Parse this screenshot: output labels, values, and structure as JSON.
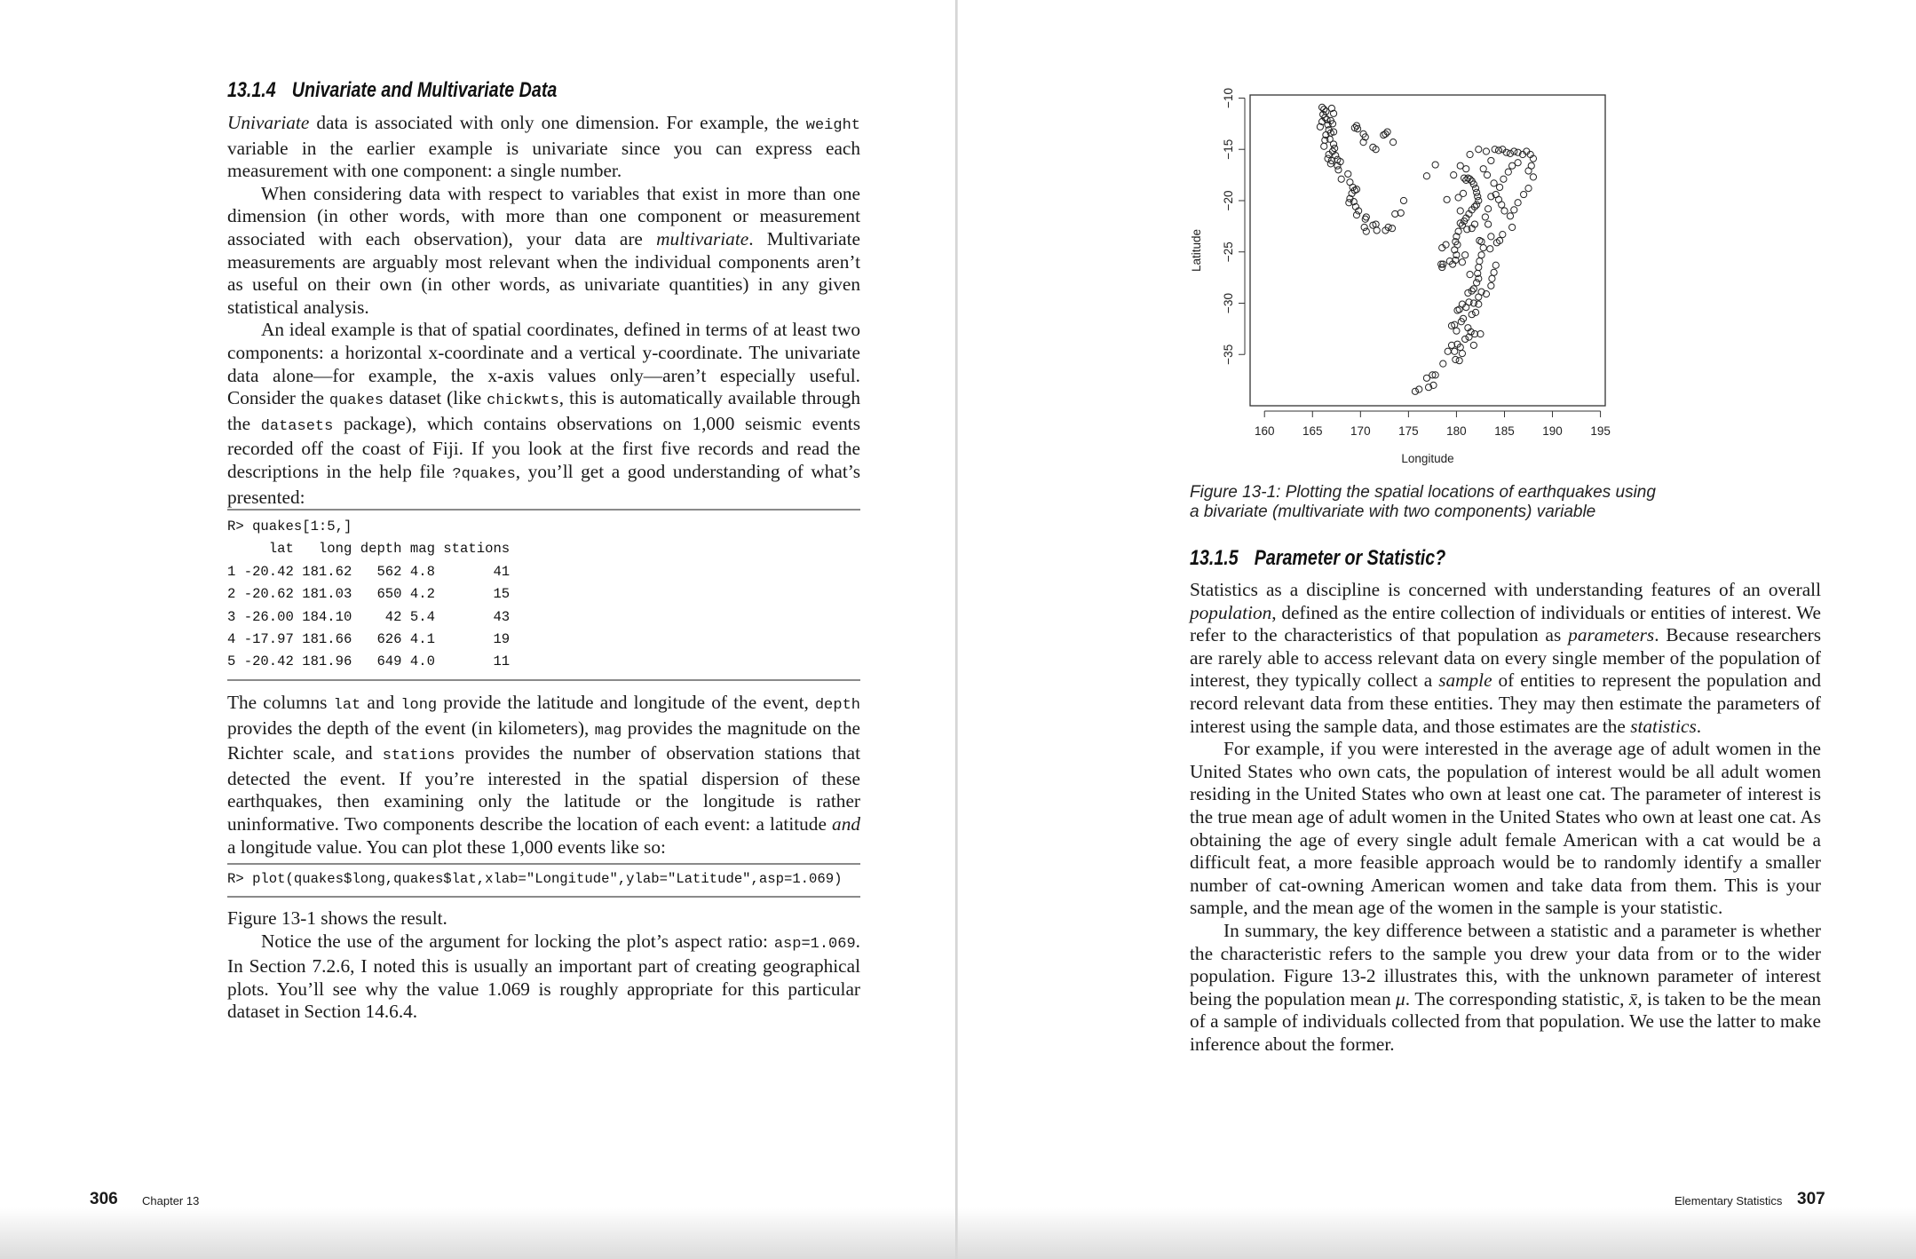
{
  "left_page": {
    "heading": {
      "number": "13.1.4",
      "title": "Univariate and Multivariate Data"
    },
    "paragraphs_top": [
      {
        "indent": false,
        "segments": [
          [
            "i",
            "Univariate"
          ],
          [
            "t",
            " data is associated with only one dimension. For example, the "
          ],
          [
            "c",
            "weight"
          ],
          [
            "t",
            " variable in the earlier example is univariate since you can express each measurement with one component: a single number."
          ]
        ]
      },
      {
        "indent": true,
        "segments": [
          [
            "t",
            "When considering data with respect to variables that exist in more than one dimension (in other words, with more than one component or measurement associated with each observation), your data are "
          ],
          [
            "i",
            "multivariate"
          ],
          [
            "t",
            ". Multivariate measurements are arguably most relevant when the individual components aren’t as useful on their own (in other words, as univariate quantities) in any given statistical analysis."
          ]
        ]
      },
      {
        "indent": true,
        "segments": [
          [
            "t",
            "An ideal example is that of spatial coordinates, defined in terms of at least two components: a horizontal x-coordinate and a vertical y-coordinate. The univariate data alone—for example, the x-axis values only—aren’t especially useful. Consider the "
          ],
          [
            "c",
            "quakes"
          ],
          [
            "t",
            " dataset (like "
          ],
          [
            "c",
            "chickwts"
          ],
          [
            "t",
            ", this is automatically available through the "
          ],
          [
            "c",
            "datasets"
          ],
          [
            "t",
            " package), which contains observations on 1,000 seismic events recorded off the coast of Fiji. If you look at the first five records and read the descriptions in the help file "
          ],
          [
            "c",
            "?quakes"
          ],
          [
            "t",
            ", you’ll get a good understanding of what’s presented:"
          ]
        ]
      }
    ],
    "code_block_1": [
      "R> quakes[1:5,]",
      "     lat   long depth mag stations",
      "1 -20.42 181.62   562 4.8       41",
      "2 -20.62 181.03   650 4.2       15",
      "3 -26.00 184.10    42 5.4       43",
      "4 -17.97 181.66   626 4.1       19",
      "5 -20.42 181.96   649 4.0       11"
    ],
    "paragraphs_mid": [
      {
        "indent": false,
        "segments": [
          [
            "t",
            "The columns "
          ],
          [
            "c",
            "lat"
          ],
          [
            "t",
            " and "
          ],
          [
            "c",
            "long"
          ],
          [
            "t",
            " provide the latitude and longitude of the event, "
          ],
          [
            "c",
            "depth"
          ],
          [
            "t",
            " provides the depth of the event (in kilometers), "
          ],
          [
            "c",
            "mag"
          ],
          [
            "t",
            " provides the magnitude on the Richter scale, and "
          ],
          [
            "c",
            "stations"
          ],
          [
            "t",
            " provides the number of observation stations that detected the event. If you’re interested in the spatial dispersion of these earthquakes, then examining only the latitude or the longitude is rather uninformative. Two components describe the location of each event: a latitude "
          ],
          [
            "i",
            "and"
          ],
          [
            "t",
            " a longitude value. You can plot these 1,000 events like so:"
          ]
        ]
      }
    ],
    "code_block_2": [
      "R> plot(quakes$long,quakes$lat,xlab=\"Longitude\",ylab=\"Latitude\",asp=1.069)"
    ],
    "paragraphs_bottom": [
      {
        "indent": false,
        "segments": [
          [
            "t",
            "Figure 13-1 shows the result."
          ]
        ]
      },
      {
        "indent": true,
        "segments": [
          [
            "t",
            "Notice the use of the argument for locking the plot’s aspect ratio: "
          ],
          [
            "c",
            "asp=1.069"
          ],
          [
            "t",
            ". In Section 7.2.6, I noted this is usually an important part of creating geographical plots. You’ll see why the value 1.069 is roughly appropriate for this particular dataset in Section 14.6.4."
          ]
        ]
      }
    ],
    "footer": {
      "page_number": "306",
      "running_head": "Chapter 13"
    }
  },
  "right_page": {
    "figure_caption": [
      "Figure 13-1: Plotting the spatial locations of earthquakes using",
      "a bivariate (multivariate with two components) variable"
    ],
    "heading": {
      "number": "13.1.5",
      "title": "Parameter or Statistic?"
    },
    "paragraphs": [
      {
        "indent": false,
        "segments": [
          [
            "t",
            "Statistics as a discipline is concerned with understanding features of an overall "
          ],
          [
            "i",
            "population"
          ],
          [
            "t",
            ", defined as the entire collection of individuals or entities of interest. We refer to the characteristics of that population as "
          ],
          [
            "i",
            "parameters"
          ],
          [
            "t",
            ". Because researchers are rarely able to access relevant data on every single member of the population of interest, they typically collect a "
          ],
          [
            "i",
            "sample"
          ],
          [
            "t",
            " of entities to represent the population and record relevant data from these entities. They may then estimate the parameters of interest using the sample data, and those estimates are the "
          ],
          [
            "i",
            "statistics"
          ],
          [
            "t",
            "."
          ]
        ]
      },
      {
        "indent": true,
        "segments": [
          [
            "t",
            "For example, if you were interested in the average age of adult women in the United States who own cats, the population of interest would be all adult women residing in the United States who own at least one cat. The parameter of interest is the true mean age of adult women in the United States who own at least one cat. As obtaining the age of every single adult female American with a cat would be a difficult feat, a more feasible approach would be to randomly identify a smaller number of cat-owning American women and take data from them. This is your sample, and the mean age of the women in the sample is your statistic."
          ]
        ]
      },
      {
        "indent": true,
        "segments": [
          [
            "t",
            "In summary, the key difference between a statistic and a parameter is whether the characteristic refers to the sample you drew your data from or to the wider population. Figure 13-2 illustrates this, with the unknown parameter of interest being the population mean "
          ],
          [
            "i",
            "μ"
          ],
          [
            "t",
            ". The corresponding statistic, "
          ],
          [
            "i",
            "x̄"
          ],
          [
            "t",
            ", is taken to be the mean of a sample of individuals collected from that population. We use the latter to make inference about the former."
          ]
        ]
      }
    ],
    "footer": {
      "running_head": "Elementary Statistics",
      "page_number": "307"
    }
  },
  "chart_data": {
    "type": "scatter",
    "xlabel": "Longitude",
    "ylabel": "Latitude",
    "xlim": [
      158.5,
      195.5
    ],
    "ylim": [
      -40,
      -9.7
    ],
    "xticks": [
      160,
      165,
      170,
      175,
      180,
      185,
      190,
      195
    ],
    "yticks": [
      -10,
      -15,
      -20,
      -25,
      -30,
      -35
    ],
    "marker": "open-circle",
    "grid": false,
    "points": [
      [
        166.0,
        -10.9
      ],
      [
        166.2,
        -11.1
      ],
      [
        166.4,
        -11.3
      ],
      [
        166.1,
        -11.6
      ],
      [
        166.3,
        -11.9
      ],
      [
        166.5,
        -12.1
      ],
      [
        166.0,
        -12.3
      ],
      [
        165.8,
        -12.8
      ],
      [
        166.6,
        -12.6
      ],
      [
        166.9,
        -12.2
      ],
      [
        167.1,
        -12.5
      ],
      [
        167.0,
        -11.0
      ],
      [
        167.2,
        -11.5
      ],
      [
        166.7,
        -13.1
      ],
      [
        166.9,
        -13.4
      ],
      [
        167.2,
        -13.3
      ],
      [
        166.4,
        -13.6
      ],
      [
        166.3,
        -14.1
      ],
      [
        166.2,
        -14.7
      ],
      [
        166.8,
        -14.0
      ],
      [
        167.2,
        -14.5
      ],
      [
        167.3,
        -14.9
      ],
      [
        167.1,
        -15.2
      ],
      [
        166.7,
        -15.5
      ],
      [
        167.4,
        -15.6
      ],
      [
        166.6,
        -15.9
      ],
      [
        167.0,
        -16.1
      ],
      [
        166.9,
        -16.4
      ],
      [
        167.6,
        -16.0
      ],
      [
        167.9,
        -16.2
      ],
      [
        167.6,
        -16.6
      ],
      [
        167.7,
        -17.0
      ],
      [
        168.0,
        -17.9
      ],
      [
        168.7,
        -17.4
      ],
      [
        168.9,
        -18.2
      ],
      [
        169.2,
        -18.7
      ],
      [
        169.4,
        -19.0
      ],
      [
        169.6,
        -18.9
      ],
      [
        169.1,
        -19.3
      ],
      [
        168.9,
        -19.8
      ],
      [
        168.8,
        -20.2
      ],
      [
        169.3,
        -20.1
      ],
      [
        169.5,
        -20.6
      ],
      [
        169.8,
        -21.0
      ],
      [
        169.6,
        -21.4
      ],
      [
        170.6,
        -21.6
      ],
      [
        170.5,
        -21.8
      ],
      [
        170.4,
        -22.6
      ],
      [
        170.6,
        -23.0
      ],
      [
        171.3,
        -22.4
      ],
      [
        171.6,
        -22.3
      ],
      [
        171.7,
        -22.9
      ],
      [
        172.6,
        -22.9
      ],
      [
        172.9,
        -22.6
      ],
      [
        173.3,
        -22.7
      ],
      [
        169.6,
        -12.7
      ],
      [
        169.4,
        -12.9
      ],
      [
        169.7,
        -13.0
      ],
      [
        170.3,
        -13.5
      ],
      [
        170.5,
        -13.8
      ],
      [
        170.3,
        -14.3
      ],
      [
        171.3,
        -14.8
      ],
      [
        171.6,
        -15.0
      ],
      [
        172.4,
        -13.6
      ],
      [
        172.6,
        -13.5
      ],
      [
        172.8,
        -13.3
      ],
      [
        173.4,
        -14.3
      ],
      [
        174.5,
        -20.0
      ],
      [
        174.2,
        -21.2
      ],
      [
        173.6,
        -21.3
      ],
      [
        177.8,
        -16.5
      ],
      [
        176.9,
        -17.6
      ],
      [
        179.0,
        -19.9
      ],
      [
        179.7,
        -17.5
      ],
      [
        180.4,
        -16.6
      ],
      [
        181.0,
        -16.9
      ],
      [
        181.4,
        -15.5
      ],
      [
        182.3,
        -15.0
      ],
      [
        183.1,
        -15.2
      ],
      [
        183.6,
        -16.1
      ],
      [
        184.0,
        -15.0
      ],
      [
        184.4,
        -15.1
      ],
      [
        184.8,
        -15.0
      ],
      [
        185.2,
        -15.3
      ],
      [
        185.6,
        -15.4
      ],
      [
        186.0,
        -15.2
      ],
      [
        186.4,
        -15.3
      ],
      [
        186.9,
        -15.5
      ],
      [
        187.3,
        -15.2
      ],
      [
        187.7,
        -15.5
      ],
      [
        188.0,
        -15.9
      ],
      [
        187.8,
        -16.6
      ],
      [
        187.5,
        -17.1
      ],
      [
        188.0,
        -17.7
      ],
      [
        187.5,
        -18.8
      ],
      [
        186.4,
        -16.3
      ],
      [
        185.8,
        -16.6
      ],
      [
        185.4,
        -17.2
      ],
      [
        184.9,
        -17.9
      ],
      [
        184.5,
        -18.7
      ],
      [
        184.1,
        -19.4
      ],
      [
        184.4,
        -19.9
      ],
      [
        184.7,
        -20.4
      ],
      [
        185.0,
        -21.0
      ],
      [
        185.6,
        -21.5
      ],
      [
        186.0,
        -20.9
      ],
      [
        186.4,
        -20.2
      ],
      [
        187.0,
        -19.4
      ],
      [
        185.8,
        -22.6
      ],
      [
        184.8,
        -23.3
      ],
      [
        184.5,
        -23.9
      ],
      [
        184.2,
        -24.1
      ],
      [
        183.6,
        -23.5
      ],
      [
        183.3,
        -22.3
      ],
      [
        183.0,
        -21.6
      ],
      [
        183.3,
        -20.8
      ],
      [
        183.6,
        -19.6
      ],
      [
        183.9,
        -18.3
      ],
      [
        183.2,
        -17.5
      ],
      [
        182.8,
        -16.9
      ],
      [
        180.8,
        -17.8
      ],
      [
        181.0,
        -18.0
      ],
      [
        181.2,
        -17.8
      ],
      [
        181.4,
        -17.9
      ],
      [
        181.6,
        -18.1
      ],
      [
        181.8,
        -18.4
      ],
      [
        182.0,
        -18.8
      ],
      [
        182.1,
        -19.2
      ],
      [
        182.2,
        -19.6
      ],
      [
        182.3,
        -20.0
      ],
      [
        182.1,
        -20.4
      ],
      [
        181.9,
        -20.6
      ],
      [
        181.6,
        -20.9
      ],
      [
        181.3,
        -21.3
      ],
      [
        181.0,
        -21.7
      ],
      [
        180.8,
        -22.0
      ],
      [
        180.6,
        -22.4
      ],
      [
        180.4,
        -22.2
      ],
      [
        180.2,
        -23.0
      ],
      [
        180.0,
        -23.5
      ],
      [
        179.9,
        -24.0
      ],
      [
        180.1,
        -24.3
      ],
      [
        179.8,
        -24.8
      ],
      [
        180.0,
        -25.3
      ],
      [
        179.9,
        -25.8
      ],
      [
        179.6,
        -26.2
      ],
      [
        179.3,
        -25.9
      ],
      [
        178.9,
        -24.3
      ],
      [
        178.5,
        -24.6
      ],
      [
        178.4,
        -26.2
      ],
      [
        178.5,
        -26.5
      ],
      [
        178.6,
        -26.2
      ],
      [
        180.6,
        -26.0
      ],
      [
        180.9,
        -25.3
      ],
      [
        180.4,
        -21.0
      ],
      [
        180.7,
        -19.3
      ],
      [
        180.2,
        -19.7
      ],
      [
        181.1,
        -22.8
      ],
      [
        181.6,
        -22.7
      ],
      [
        181.9,
        -22.3
      ],
      [
        182.4,
        -23.9
      ],
      [
        182.6,
        -24.0
      ],
      [
        182.8,
        -24.6
      ],
      [
        182.6,
        -25.3
      ],
      [
        182.4,
        -25.9
      ],
      [
        182.3,
        -26.5
      ],
      [
        182.2,
        -27.1
      ],
      [
        182.3,
        -27.6
      ],
      [
        182.1,
        -28.0
      ],
      [
        181.8,
        -28.6
      ],
      [
        182.6,
        -28.9
      ],
      [
        182.3,
        -29.4
      ],
      [
        183.1,
        -29.1
      ],
      [
        183.6,
        -28.3
      ],
      [
        183.7,
        -27.6
      ],
      [
        183.9,
        -27.0
      ],
      [
        184.1,
        -26.3
      ],
      [
        183.5,
        -24.7
      ],
      [
        181.4,
        -27.2
      ],
      [
        181.6,
        -28.8
      ],
      [
        181.2,
        -29.0
      ],
      [
        181.3,
        -29.9
      ],
      [
        181.8,
        -30.0
      ],
      [
        182.3,
        -30.1
      ],
      [
        181.0,
        -30.4
      ],
      [
        180.6,
        -30.1
      ],
      [
        180.3,
        -30.6
      ],
      [
        180.1,
        -30.7
      ],
      [
        182.0,
        -30.9
      ],
      [
        181.6,
        -31.1
      ],
      [
        180.7,
        -31.5
      ],
      [
        180.5,
        -31.8
      ],
      [
        179.8,
        -32.1
      ],
      [
        179.5,
        -32.2
      ],
      [
        180.0,
        -32.7
      ],
      [
        181.2,
        -32.4
      ],
      [
        181.5,
        -32.8
      ],
      [
        181.9,
        -33.0
      ],
      [
        182.5,
        -33.0
      ],
      [
        181.3,
        -33.3
      ],
      [
        180.9,
        -33.5
      ],
      [
        180.4,
        -34.3
      ],
      [
        180.1,
        -34.0
      ],
      [
        181.8,
        -34.1
      ],
      [
        179.5,
        -34.1
      ],
      [
        179.1,
        -34.7
      ],
      [
        179.8,
        -34.7
      ],
      [
        180.6,
        -34.9
      ],
      [
        179.9,
        -35.5
      ],
      [
        180.3,
        -35.6
      ],
      [
        178.6,
        -35.9
      ],
      [
        177.5,
        -37.0
      ],
      [
        177.8,
        -37.0
      ],
      [
        176.9,
        -37.3
      ],
      [
        177.1,
        -38.2
      ],
      [
        177.6,
        -38.0
      ],
      [
        176.1,
        -38.4
      ],
      [
        175.7,
        -38.6
      ]
    ]
  }
}
